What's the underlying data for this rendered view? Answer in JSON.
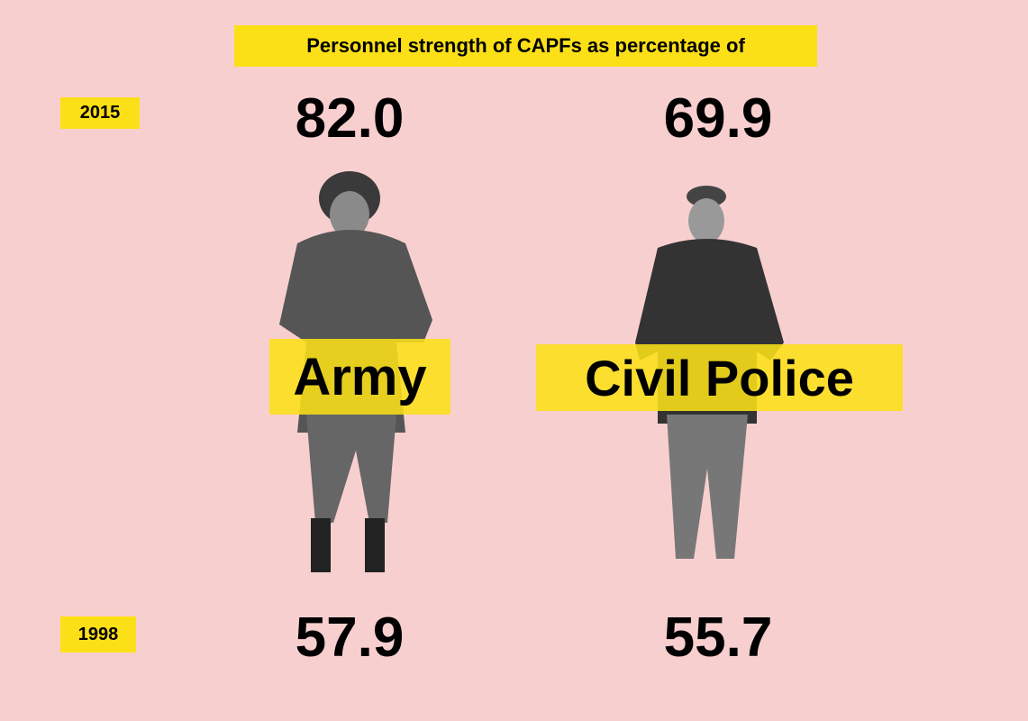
{
  "title": "Personnel strength of CAPFs as percentage of",
  "years": [
    "2015",
    "1998"
  ],
  "forces": [
    {
      "name": "Army",
      "values": [
        "82.0",
        "57.9"
      ]
    },
    {
      "name": "Civil Police",
      "values": [
        "69.9",
        "55.7"
      ]
    }
  ]
}
